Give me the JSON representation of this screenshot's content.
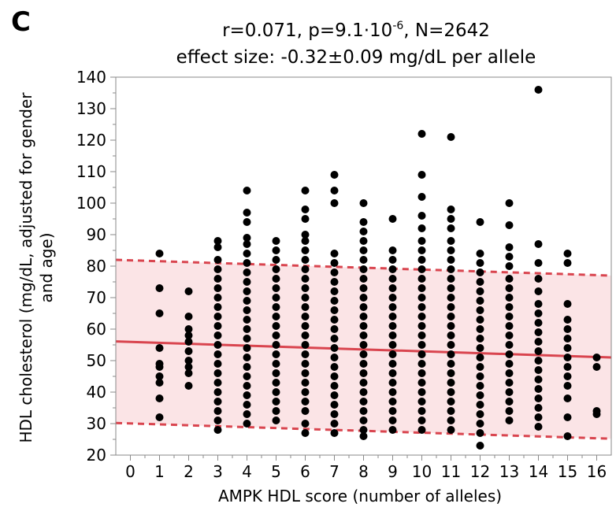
{
  "panel_label": "C",
  "chart_data": {
    "type": "scatter",
    "title_prefix": "r=0.071, p=9.1·10",
    "title_exponent": "-6",
    "title_suffix": ", N=2642",
    "subtitle": "effect size: -0.32±0.09 mg/dL per allele",
    "xlabel": "AMPK HDL score (number of alleles)",
    "ylabel_line1": "HDL cholesterol (mg/dL, adjusted for gender",
    "ylabel_line2": "and age)",
    "xlim": [
      -0.5,
      16.5
    ],
    "ylim": [
      20,
      140
    ],
    "x_ticks": [
      "0",
      "1",
      "2",
      "3",
      "4",
      "5",
      "6",
      "7",
      "8",
      "9",
      "10",
      "11",
      "12",
      "13",
      "14",
      "15",
      "16"
    ],
    "y_ticks": [
      "20",
      "30",
      "40",
      "50",
      "60",
      "70",
      "80",
      "90",
      "100",
      "110",
      "120",
      "130",
      "140"
    ],
    "grid": false,
    "colors": {
      "points": "#000000",
      "fit_line": "#d9454f",
      "band_fill": "#fbe4e6",
      "band_edge": "#d9454f"
    },
    "fit_line": {
      "x": [
        -0.5,
        16.5
      ],
      "y": [
        56.1,
        51.0
      ]
    },
    "prediction_band": {
      "upper": {
        "x": [
          -0.5,
          16.5
        ],
        "y": [
          82.0,
          77.0
        ]
      },
      "lower": {
        "x": [
          -0.5,
          16.5
        ],
        "y": [
          30.2,
          25.2
        ]
      }
    },
    "points": [
      {
        "x": 1,
        "y": [
          84,
          73,
          65,
          54,
          49,
          48,
          45,
          43,
          38,
          32
        ]
      },
      {
        "x": 2,
        "y": [
          72,
          64,
          60,
          58,
          56,
          53,
          50,
          48,
          46,
          42
        ]
      },
      {
        "x": 3,
        "y": [
          88,
          86,
          82,
          79,
          76,
          73,
          70,
          67,
          64,
          61,
          58,
          55,
          52,
          49,
          46,
          43,
          40,
          37,
          34,
          31,
          28
        ]
      },
      {
        "x": 4,
        "y": [
          104,
          97,
          94,
          89,
          87,
          84,
          81,
          78,
          75,
          72,
          69,
          66,
          63,
          60,
          57,
          54,
          51,
          48,
          45,
          42,
          39,
          36,
          33,
          30
        ]
      },
      {
        "x": 5,
        "y": [
          88,
          85,
          82,
          79,
          76,
          73,
          70,
          67,
          64,
          61,
          58,
          55,
          52,
          49,
          46,
          43,
          40,
          37,
          34,
          31
        ]
      },
      {
        "x": 6,
        "y": [
          104,
          98,
          95,
          90,
          88,
          85,
          82,
          79,
          76,
          73,
          70,
          67,
          64,
          61,
          58,
          55,
          52,
          49,
          46,
          43,
          40,
          37,
          34,
          30,
          27
        ]
      },
      {
        "x": 7,
        "y": [
          109,
          104,
          100,
          84,
          81,
          78,
          75,
          72,
          69,
          66,
          63,
          60,
          57,
          54,
          51,
          48,
          45,
          42,
          39,
          36,
          33,
          30,
          27
        ]
      },
      {
        "x": 8,
        "y": [
          100,
          94,
          91,
          88,
          85,
          82,
          79,
          76,
          73,
          70,
          67,
          64,
          61,
          58,
          55,
          52,
          49,
          46,
          43,
          40,
          37,
          34,
          31,
          28,
          26
        ]
      },
      {
        "x": 9,
        "y": [
          95,
          85,
          82,
          79,
          76,
          73,
          70,
          67,
          64,
          61,
          58,
          55,
          52,
          49,
          46,
          43,
          40,
          37,
          34,
          31,
          28
        ]
      },
      {
        "x": 10,
        "y": [
          122,
          109,
          102,
          96,
          92,
          88,
          85,
          82,
          79,
          76,
          73,
          70,
          67,
          64,
          61,
          58,
          55,
          52,
          49,
          46,
          43,
          40,
          37,
          34,
          31,
          28
        ]
      },
      {
        "x": 11,
        "y": [
          121,
          98,
          95,
          92,
          88,
          85,
          82,
          79,
          76,
          73,
          70,
          67,
          64,
          61,
          58,
          55,
          52,
          49,
          46,
          43,
          40,
          37,
          34,
          31,
          28
        ]
      },
      {
        "x": 12,
        "y": [
          94,
          84,
          81,
          78,
          75,
          72,
          69,
          66,
          63,
          60,
          57,
          54,
          51,
          48,
          45,
          42,
          39,
          36,
          33,
          30,
          27,
          23
        ]
      },
      {
        "x": 13,
        "y": [
          100,
          93,
          86,
          83,
          80,
          76,
          73,
          70,
          67,
          64,
          61,
          58,
          55,
          52,
          49,
          46,
          43,
          40,
          37,
          34,
          31
        ]
      },
      {
        "x": 14,
        "y": [
          136,
          87,
          81,
          76,
          72,
          68,
          65,
          62,
          59,
          56,
          53,
          50,
          47,
          44,
          41,
          38,
          35,
          32,
          29
        ]
      },
      {
        "x": 15,
        "y": [
          84,
          81,
          68,
          63,
          60,
          57,
          54,
          51,
          48,
          45,
          42,
          38,
          32,
          26
        ]
      },
      {
        "x": 16,
        "y": [
          51,
          48,
          34,
          33
        ]
      }
    ]
  }
}
